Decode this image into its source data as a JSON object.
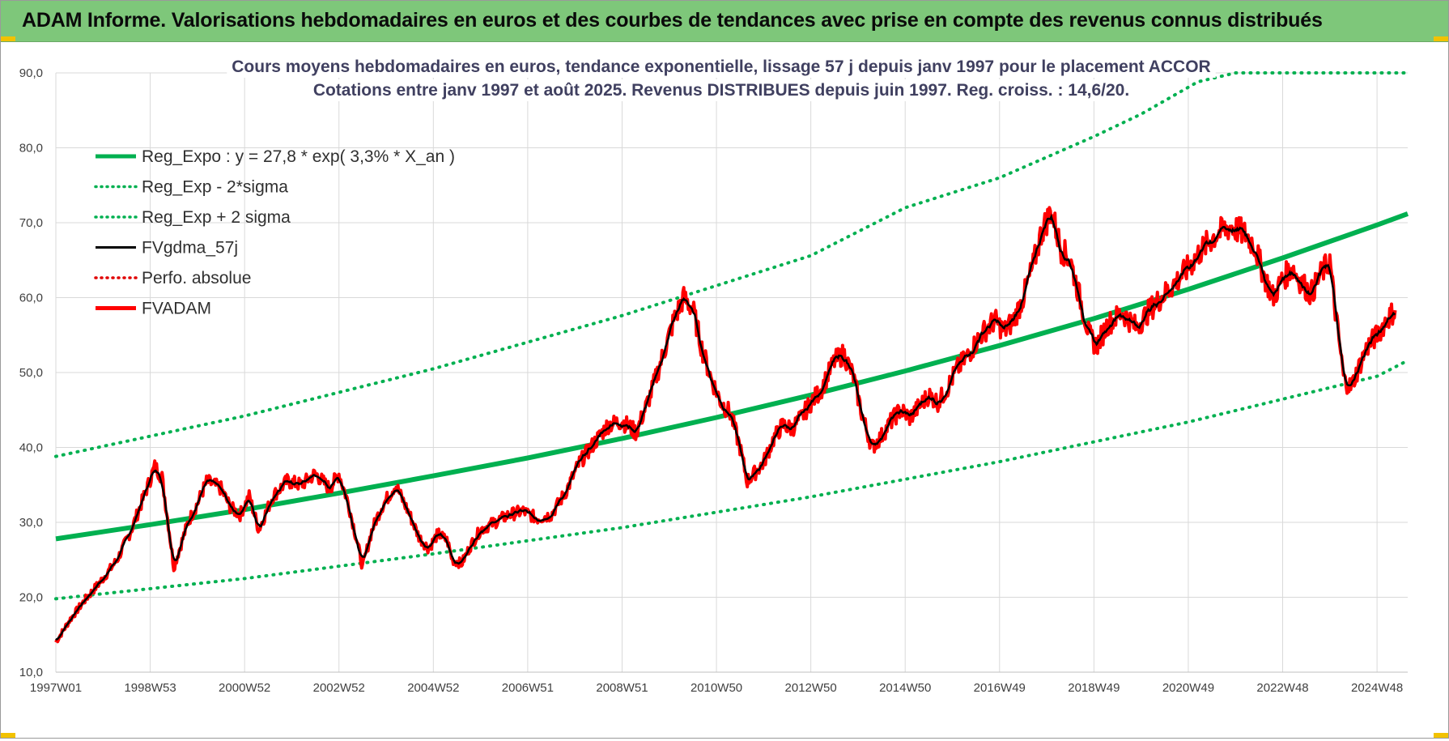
{
  "header": {
    "title": "ADAM Informe. Valorisations hebdomadaires en euros et des courbes de tendances avec prise en compte des revenus connus distribués"
  },
  "colors": {
    "header_bg": "#7ec77a",
    "reg_expo": "#00b050",
    "sigma_bands": "#00b050",
    "fvgdma": "#000000",
    "perfo": "#e00000",
    "fvadam": "#ff0000",
    "grid": "#d9d9d9"
  },
  "chart_data": {
    "type": "line",
    "title_line1": "Cours moyens hebdomadaires en euros, tendance exponentielle, lissage 57 j depuis janv 1997 pour le placement ACCOR",
    "title_line2": "Cotations entre janv 1997 et août 2025. Revenus DISTRIBUES depuis juin 1997. Reg. croiss. : 14,6/20.",
    "ylim": [
      10,
      90
    ],
    "yticks": [
      "10,0",
      "20,0",
      "30,0",
      "40,0",
      "50,0",
      "60,0",
      "70,0",
      "80,0",
      "90,0"
    ],
    "xlim": [
      1997.0,
      2025.65
    ],
    "xticks": [
      {
        "label": "1997W01",
        "year": 1997.0
      },
      {
        "label": "1998W53",
        "year": 1999.0
      },
      {
        "label": "2000W52",
        "year": 2001.0
      },
      {
        "label": "2002W52",
        "year": 2003.0
      },
      {
        "label": "2004W52",
        "year": 2005.0
      },
      {
        "label": "2006W51",
        "year": 2007.0
      },
      {
        "label": "2008W51",
        "year": 2009.0
      },
      {
        "label": "2010W50",
        "year": 2011.0
      },
      {
        "label": "2012W50",
        "year": 2013.0
      },
      {
        "label": "2014W50",
        "year": 2015.0
      },
      {
        "label": "2016W49",
        "year": 2017.0
      },
      {
        "label": "2018W49",
        "year": 2019.0
      },
      {
        "label": "2020W49",
        "year": 2021.0
      },
      {
        "label": "2022W48",
        "year": 2023.0
      },
      {
        "label": "2024W48",
        "year": 2025.0
      }
    ],
    "legend": [
      {
        "label": "Reg_Expo : y = 27,8 * exp( 3,3% *  X_an )",
        "style": "solid-thick",
        "color": "#00b050"
      },
      {
        "label": "Reg_Exp - 2*sigma",
        "style": "dotted",
        "color": "#00b050"
      },
      {
        "label": "Reg_Exp + 2 sigma",
        "style": "dotted",
        "color": "#00b050"
      },
      {
        "label": "FVgdma_57j",
        "style": "solid",
        "color": "#000000"
      },
      {
        "label": "Perfo. absolue",
        "style": "dotted",
        "color": "#e00000"
      },
      {
        "label": "FVADAM",
        "style": "solid-thick",
        "color": "#ff0000"
      }
    ],
    "regression": {
      "a": 27.8,
      "rate": 0.033,
      "start_year": 1997.0
    },
    "band_cap": 90,
    "series": [
      {
        "name": "Reg_Expo : y = 27,8 * exp( 3,3% *  X_an )",
        "points": [
          [
            1997.0,
            27.8
          ],
          [
            1999.0,
            29.7
          ],
          [
            2001.0,
            31.7
          ],
          [
            2003.0,
            33.9
          ],
          [
            2005.0,
            36.2
          ],
          [
            2007.0,
            38.6
          ],
          [
            2009.0,
            41.2
          ],
          [
            2011.0,
            44.0
          ],
          [
            2013.0,
            47.0
          ],
          [
            2015.0,
            50.2
          ],
          [
            2017.0,
            53.6
          ],
          [
            2019.0,
            57.2
          ],
          [
            2021.0,
            61.1
          ],
          [
            2023.0,
            65.3
          ],
          [
            2025.0,
            69.7
          ],
          [
            2025.65,
            71.2
          ]
        ]
      },
      {
        "name": "Reg_Exp - 2*sigma",
        "points": [
          [
            1997.0,
            19.8
          ],
          [
            2001.0,
            22.5
          ],
          [
            2005.0,
            25.8
          ],
          [
            2009.0,
            29.3
          ],
          [
            2013.0,
            33.4
          ],
          [
            2017.0,
            38.1
          ],
          [
            2021.0,
            43.4
          ],
          [
            2025.0,
            49.5
          ],
          [
            2025.65,
            51.6
          ]
        ]
      },
      {
        "name": "Reg_Exp + 2 sigma",
        "points": [
          [
            1997.0,
            38.8
          ],
          [
            2001.0,
            44.2
          ],
          [
            2005.0,
            50.5
          ],
          [
            2009.0,
            57.6
          ],
          [
            2013.0,
            65.6
          ],
          [
            2015.0,
            72.0
          ],
          [
            2017.0,
            76.0
          ],
          [
            2019.0,
            81.5
          ],
          [
            2020.0,
            84.5
          ],
          [
            2021.2,
            88.8
          ],
          [
            2022.0,
            90.0
          ],
          [
            2025.65,
            90.0
          ]
        ]
      },
      {
        "name": "FVADAM",
        "points": [
          [
            1997.0,
            14.0
          ],
          [
            1997.3,
            17.0
          ],
          [
            1997.6,
            19.5
          ],
          [
            1998.0,
            22.5
          ],
          [
            1998.3,
            25.0
          ],
          [
            1998.6,
            29.0
          ],
          [
            1998.9,
            34.0
          ],
          [
            1999.1,
            37.5
          ],
          [
            1999.25,
            36.0
          ],
          [
            1999.4,
            29.0
          ],
          [
            1999.5,
            24.0
          ],
          [
            1999.65,
            27.0
          ],
          [
            1999.8,
            30.0
          ],
          [
            2000.0,
            32.5
          ],
          [
            2000.2,
            35.5
          ],
          [
            2000.5,
            34.5
          ],
          [
            2000.7,
            32.0
          ],
          [
            2000.9,
            31.0
          ],
          [
            2001.1,
            33.5
          ],
          [
            2001.3,
            29.0
          ],
          [
            2001.6,
            33.5
          ],
          [
            2001.9,
            35.5
          ],
          [
            2002.2,
            35.0
          ],
          [
            2002.5,
            36.5
          ],
          [
            2002.8,
            34.5
          ],
          [
            2003.0,
            36.5
          ],
          [
            2003.2,
            32.5
          ],
          [
            2003.4,
            27.0
          ],
          [
            2003.5,
            24.0
          ],
          [
            2003.7,
            29.0
          ],
          [
            2003.9,
            32.0
          ],
          [
            2004.2,
            35.0
          ],
          [
            2004.5,
            31.0
          ],
          [
            2004.7,
            28.0
          ],
          [
            2004.9,
            26.5
          ],
          [
            2005.1,
            28.5
          ],
          [
            2005.3,
            27.5
          ],
          [
            2005.4,
            25.0
          ],
          [
            2005.6,
            24.5
          ],
          [
            2005.8,
            27.0
          ],
          [
            2006.0,
            29.0
          ],
          [
            2006.3,
            30.0
          ],
          [
            2006.6,
            31.0
          ],
          [
            2006.9,
            31.5
          ],
          [
            2007.2,
            30.5
          ],
          [
            2007.5,
            31.0
          ],
          [
            2007.8,
            34.0
          ],
          [
            2008.1,
            38.0
          ],
          [
            2008.4,
            40.5
          ],
          [
            2008.7,
            43.0
          ],
          [
            2009.0,
            43.5
          ],
          [
            2009.3,
            42.0
          ],
          [
            2009.6,
            47.0
          ],
          [
            2009.9,
            53.0
          ],
          [
            2010.1,
            57.0
          ],
          [
            2010.3,
            60.0
          ],
          [
            2010.5,
            58.5
          ],
          [
            2010.7,
            53.0
          ],
          [
            2010.9,
            49.0
          ],
          [
            2011.1,
            46.0
          ],
          [
            2011.3,
            44.5
          ],
          [
            2011.5,
            40.0
          ],
          [
            2011.65,
            35.5
          ],
          [
            2011.8,
            36.5
          ],
          [
            2012.0,
            38.0
          ],
          [
            2012.2,
            41.0
          ],
          [
            2012.4,
            43.0
          ],
          [
            2012.6,
            42.5
          ],
          [
            2012.8,
            44.0
          ],
          [
            2013.0,
            46.0
          ],
          [
            2013.2,
            47.5
          ],
          [
            2013.5,
            51.5
          ],
          [
            2013.7,
            52.5
          ],
          [
            2013.9,
            49.5
          ],
          [
            2014.1,
            44.0
          ],
          [
            2014.3,
            40.0
          ],
          [
            2014.5,
            41.5
          ],
          [
            2014.7,
            43.5
          ],
          [
            2014.9,
            45.0
          ],
          [
            2015.1,
            44.0
          ],
          [
            2015.3,
            45.5
          ],
          [
            2015.5,
            47.0
          ],
          [
            2015.7,
            46.0
          ],
          [
            2015.9,
            48.0
          ],
          [
            2016.1,
            50.5
          ],
          [
            2016.3,
            52.0
          ],
          [
            2016.6,
            55.0
          ],
          [
            2016.9,
            57.0
          ],
          [
            2017.1,
            55.5
          ],
          [
            2017.3,
            57.0
          ],
          [
            2017.5,
            60.0
          ],
          [
            2017.7,
            64.0
          ],
          [
            2017.9,
            69.0
          ],
          [
            2018.1,
            71.5
          ],
          [
            2018.3,
            66.5
          ],
          [
            2018.5,
            65.0
          ],
          [
            2018.7,
            60.0
          ],
          [
            2018.9,
            55.0
          ],
          [
            2019.05,
            53.5
          ],
          [
            2019.3,
            56.5
          ],
          [
            2019.6,
            58.0
          ],
          [
            2019.9,
            56.0
          ],
          [
            2020.2,
            58.5
          ],
          [
            2020.5,
            60.5
          ],
          [
            2020.8,
            62.5
          ],
          [
            2021.0,
            64.0
          ],
          [
            2021.3,
            66.5
          ],
          [
            2021.6,
            68.5
          ],
          [
            2021.9,
            69.5
          ],
          [
            2022.2,
            68.5
          ],
          [
            2022.4,
            67.0
          ],
          [
            2022.6,
            63.0
          ],
          [
            2022.8,
            60.0
          ],
          [
            2023.0,
            62.5
          ],
          [
            2023.2,
            64.0
          ],
          [
            2023.4,
            62.0
          ],
          [
            2023.6,
            60.5
          ],
          [
            2023.8,
            63.0
          ],
          [
            2024.0,
            65.0
          ],
          [
            2024.1,
            59.0
          ],
          [
            2024.2,
            54.0
          ],
          [
            2024.3,
            49.0
          ],
          [
            2024.45,
            48.0
          ],
          [
            2024.6,
            50.5
          ],
          [
            2024.8,
            53.5
          ],
          [
            2025.0,
            55.0
          ],
          [
            2025.2,
            57.0
          ],
          [
            2025.4,
            58.5
          ]
        ]
      }
    ]
  }
}
